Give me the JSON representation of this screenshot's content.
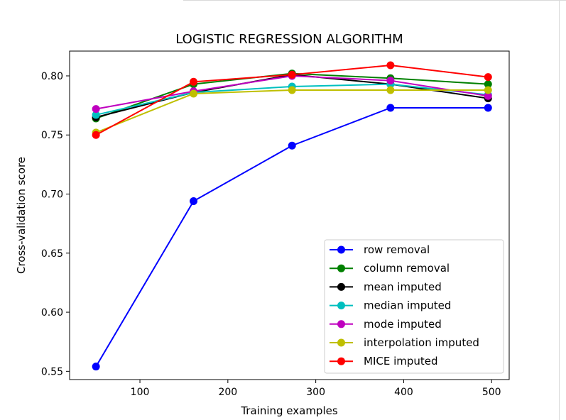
{
  "chart_data": {
    "type": "line",
    "title": "LOGISTIC REGRESSION ALGORITHM",
    "xlabel": "Training examples",
    "ylabel": "Cross-validation score",
    "xlim": [
      20,
      520
    ],
    "ylim": [
      0.543,
      0.821
    ],
    "xticks": [
      100,
      200,
      300,
      400,
      500
    ],
    "yticks": [
      0.55,
      0.6,
      0.65,
      0.7,
      0.75,
      0.8
    ],
    "grid": false,
    "legend": "lower-right",
    "series": [
      {
        "name": "row removal",
        "color": "#0000ff",
        "x": [
          50,
          161,
          273,
          385,
          496
        ],
        "values": [
          0.554,
          0.694,
          0.741,
          0.773,
          0.773
        ]
      },
      {
        "name": "column removal",
        "color": "#008000",
        "x": [
          50,
          161,
          273,
          385,
          496
        ],
        "values": [
          0.764,
          0.793,
          0.802,
          0.798,
          0.793
        ]
      },
      {
        "name": "mean imputed",
        "color": "#000000",
        "x": [
          50,
          161,
          273,
          385,
          496
        ],
        "values": [
          0.765,
          0.786,
          0.801,
          0.793,
          0.781
        ]
      },
      {
        "name": "median imputed",
        "color": "#00bfbf",
        "x": [
          50,
          161,
          273,
          385,
          496
        ],
        "values": [
          0.767,
          0.786,
          0.791,
          0.793,
          0.784
        ]
      },
      {
        "name": "mode imputed",
        "color": "#bf00bf",
        "x": [
          50,
          161,
          273,
          385,
          496
        ],
        "values": [
          0.772,
          0.787,
          0.8,
          0.796,
          0.783
        ]
      },
      {
        "name": "interpolation imputed",
        "color": "#bfbf00",
        "x": [
          50,
          161,
          273,
          385,
          496
        ],
        "values": [
          0.752,
          0.785,
          0.788,
          0.788,
          0.788
        ]
      },
      {
        "name": "MICE imputed",
        "color": "#ff0000",
        "x": [
          50,
          161,
          273,
          385,
          496
        ],
        "values": [
          0.75,
          0.795,
          0.801,
          0.809,
          0.799
        ]
      }
    ]
  }
}
